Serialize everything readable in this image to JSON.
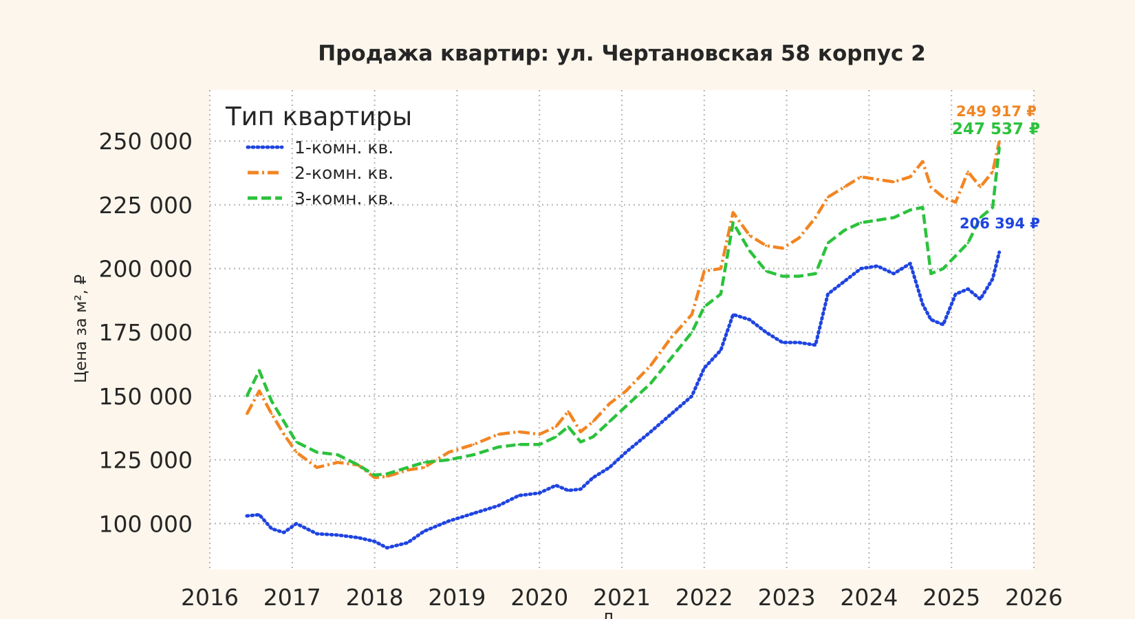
{
  "chart_data": {
    "type": "line",
    "title": "Продажа квартир: ул. Чертановская 58 корпус 2",
    "xlabel": "Д",
    "ylabel": "Цена за м², ₽",
    "xlim": [
      2016,
      2026
    ],
    "ylim": [
      82000,
      270000
    ],
    "x_ticks": [
      "2016",
      "2017",
      "2018",
      "2019",
      "2020",
      "2021",
      "2022",
      "2023",
      "2024",
      "2025",
      "2026"
    ],
    "y_ticks": [
      "100 000",
      "125 000",
      "150 000",
      "175 000",
      "200 000",
      "225 000",
      "250 000"
    ],
    "grid": true,
    "legend": {
      "title": "Тип квартиры",
      "position": "top-left"
    },
    "series": [
      {
        "name": "1-комн. кв.",
        "color": "#1f44e0",
        "style": "dotted",
        "x": [
          2016.45,
          2016.6,
          2016.75,
          2016.9,
          2017.05,
          2017.3,
          2017.55,
          2017.8,
          2018.0,
          2018.15,
          2018.4,
          2018.6,
          2018.9,
          2019.2,
          2019.5,
          2019.75,
          2020.0,
          2020.2,
          2020.35,
          2020.5,
          2020.65,
          2020.85,
          2021.05,
          2021.35,
          2021.6,
          2021.85,
          2022.0,
          2022.2,
          2022.35,
          2022.55,
          2022.75,
          2022.95,
          2023.15,
          2023.35,
          2023.5,
          2023.7,
          2023.9,
          2024.1,
          2024.3,
          2024.5,
          2024.65,
          2024.75,
          2024.9,
          2025.05,
          2025.2,
          2025.35,
          2025.5,
          2025.58
        ],
        "values": [
          103000,
          103500,
          98000,
          96500,
          100000,
          96000,
          95500,
          94500,
          93000,
          90500,
          92500,
          97000,
          101000,
          104000,
          107000,
          111000,
          112000,
          115000,
          113000,
          113500,
          118000,
          122000,
          128000,
          136000,
          143000,
          150000,
          161000,
          168000,
          182000,
          180000,
          175000,
          171000,
          171000,
          170000,
          190000,
          195000,
          200000,
          201000,
          198000,
          202000,
          186000,
          180000,
          178000,
          190000,
          192000,
          188000,
          196000,
          206394
        ]
      },
      {
        "name": "2-комн. кв.",
        "color": "#f28522",
        "style": "dashdot",
        "x": [
          2016.45,
          2016.6,
          2016.75,
          2016.9,
          2017.05,
          2017.3,
          2017.55,
          2017.8,
          2018.0,
          2018.15,
          2018.4,
          2018.6,
          2018.9,
          2019.2,
          2019.5,
          2019.75,
          2020.0,
          2020.2,
          2020.35,
          2020.5,
          2020.65,
          2020.85,
          2021.05,
          2021.35,
          2021.6,
          2021.85,
          2022.0,
          2022.2,
          2022.35,
          2022.55,
          2022.75,
          2022.95,
          2023.15,
          2023.35,
          2023.5,
          2023.7,
          2023.9,
          2024.1,
          2024.3,
          2024.5,
          2024.65,
          2024.75,
          2024.9,
          2025.05,
          2025.2,
          2025.35,
          2025.5,
          2025.58
        ],
        "values": [
          143000,
          152000,
          143000,
          135000,
          128000,
          122000,
          124000,
          123000,
          118000,
          118500,
          121000,
          122000,
          128000,
          131000,
          135000,
          136000,
          135000,
          138000,
          144000,
          136000,
          140000,
          147000,
          152000,
          162000,
          173000,
          182000,
          199000,
          200000,
          222000,
          213000,
          209000,
          208000,
          212000,
          220000,
          228000,
          232000,
          236000,
          235000,
          234000,
          236000,
          242000,
          232000,
          228000,
          226000,
          238000,
          232000,
          238000,
          249917
        ]
      },
      {
        "name": "3-комн. кв.",
        "color": "#2bc23c",
        "style": "dashed",
        "x": [
          2016.45,
          2016.6,
          2016.75,
          2016.9,
          2017.05,
          2017.3,
          2017.55,
          2017.8,
          2018.0,
          2018.15,
          2018.4,
          2018.6,
          2018.9,
          2019.2,
          2019.5,
          2019.75,
          2020.0,
          2020.2,
          2020.35,
          2020.5,
          2020.65,
          2020.85,
          2021.05,
          2021.35,
          2021.6,
          2021.85,
          2022.0,
          2022.2,
          2022.35,
          2022.55,
          2022.75,
          2022.95,
          2023.15,
          2023.35,
          2023.5,
          2023.7,
          2023.9,
          2024.1,
          2024.3,
          2024.5,
          2024.65,
          2024.75,
          2024.9,
          2025.05,
          2025.2,
          2025.35,
          2025.5,
          2025.58
        ],
        "values": [
          150000,
          160000,
          148000,
          140000,
          132000,
          128000,
          127000,
          123000,
          119000,
          119500,
          122000,
          124000,
          125000,
          127000,
          130000,
          131000,
          131000,
          134000,
          138000,
          132000,
          134000,
          140000,
          146000,
          155000,
          165000,
          175000,
          185000,
          190000,
          218000,
          207000,
          199000,
          197000,
          197000,
          198000,
          210000,
          215000,
          218000,
          219000,
          220000,
          223000,
          224000,
          198000,
          200000,
          205000,
          210000,
          220000,
          224000,
          247537
        ]
      }
    ],
    "end_labels": [
      "206 394 ₽",
      "249 917 ₽",
      "247 537 ₽"
    ]
  }
}
